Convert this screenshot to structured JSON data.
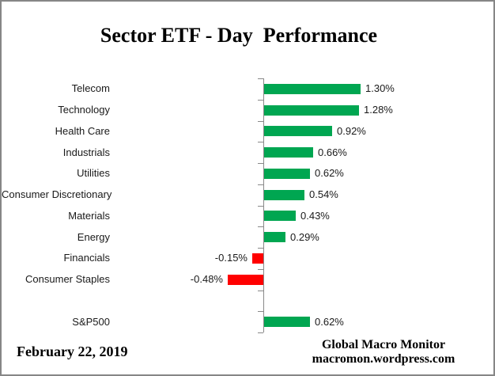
{
  "title": "Sector ETF - Day  Performance",
  "footer": {
    "date": "February 22, 2019",
    "credit_line1": "Global Macro Monitor",
    "credit_line2": "macromon.wordpress.com"
  },
  "colors": {
    "positive_bar": "#00A651",
    "negative_bar": "#FF0000",
    "axis": "#898989",
    "frame_border": "#868686"
  },
  "chart_data": {
    "type": "bar",
    "orientation": "horizontal",
    "title": "Sector ETF - Day  Performance",
    "categories": [
      "Telecom",
      "Technology",
      "Health Care",
      "Industrials",
      "Utilities",
      "Consumer Discretionary",
      "Materials",
      "Energy",
      "Financials",
      "Consumer Staples",
      "",
      "S&P500"
    ],
    "values": [
      1.3,
      1.28,
      0.92,
      0.66,
      0.62,
      0.54,
      0.43,
      0.29,
      -0.15,
      -0.48,
      null,
      0.62
    ],
    "value_labels": [
      "1.30%",
      "1.28%",
      "0.92%",
      "0.66%",
      "0.62%",
      "0.54%",
      "0.43%",
      "0.29%",
      "-0.15%",
      "-0.48%",
      "",
      "0.62%"
    ],
    "xlabel": "",
    "ylabel": "",
    "xlim": [
      -0.6,
      1.5
    ],
    "grid": false,
    "legend": false,
    "data_labels": true,
    "baseline_axis": "vertical gray line at 0 with left-pointing category ticks"
  }
}
